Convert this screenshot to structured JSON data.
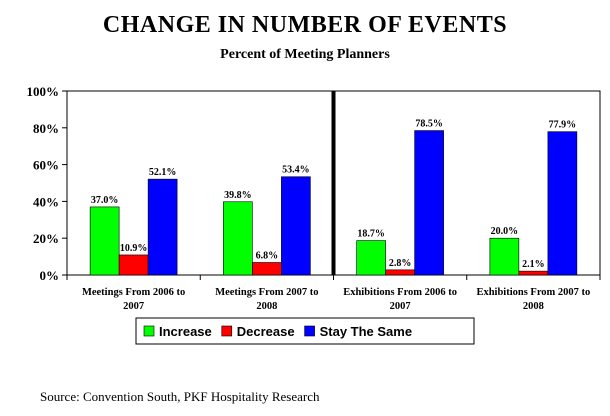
{
  "chart_data": {
    "type": "bar",
    "title": "CHANGE IN NUMBER OF EVENTS",
    "subtitle": "Percent of Meeting Planners",
    "categories": [
      [
        "Meetings From 2006 to",
        "2007"
      ],
      [
        "Meetings From 2007 to",
        "2008"
      ],
      [
        "Exhibitions From 2006 to",
        "2007"
      ],
      [
        "Exhibitions From 2007 to",
        "2008"
      ]
    ],
    "series": [
      {
        "name": "Increase",
        "color": "#00ff00",
        "values": [
          37.0,
          39.8,
          18.7,
          20.0
        ],
        "labels": [
          "37.0%",
          "39.8%",
          "18.7%",
          "20.0%"
        ]
      },
      {
        "name": "Decrease",
        "color": "#ff0000",
        "values": [
          10.9,
          6.8,
          2.8,
          2.1
        ],
        "labels": [
          "10.9%",
          "6.8%",
          "2.8%",
          "2.1%"
        ]
      },
      {
        "name": "Stay The Same",
        "color": "#0000ff",
        "values": [
          52.1,
          53.4,
          78.5,
          77.9
        ],
        "labels": [
          "52.1%",
          "53.4%",
          "78.5%",
          "77.9%"
        ]
      }
    ],
    "yticks": [
      "0%",
      "20%",
      "40%",
      "60%",
      "80%",
      "100%"
    ],
    "ylim": [
      0,
      100
    ],
    "grid": false,
    "legend": "bottom",
    "divider_between_categories": [
      2,
      3
    ]
  },
  "source": "Source: Convention South, PKF Hospitality Research"
}
